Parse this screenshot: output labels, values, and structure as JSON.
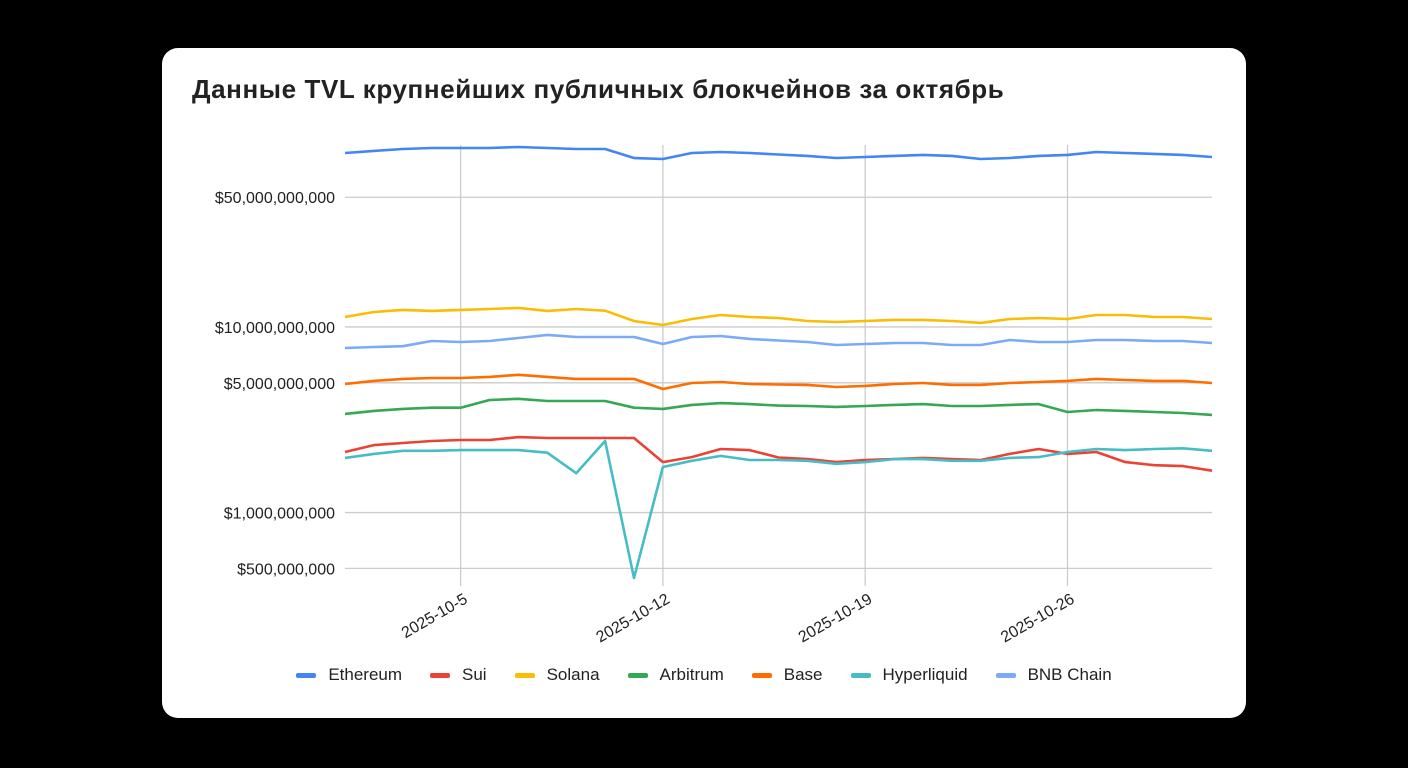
{
  "chart_data": {
    "type": "line",
    "title": "Данные TVL крупнейших публичных блокчейнов за октябрь",
    "xlabel": "",
    "ylabel": "",
    "yscale": "log",
    "ylim": [
      433000000,
      95600000000
    ],
    "xlim": [
      "2025-10-01",
      "2025-10-31"
    ],
    "grid": true,
    "legend_position": "bottom",
    "x": [
      "2025-10-01",
      "2025-10-02",
      "2025-10-03",
      "2025-10-04",
      "2025-10-05",
      "2025-10-06",
      "2025-10-07",
      "2025-10-08",
      "2025-10-09",
      "2025-10-10",
      "2025-10-11",
      "2025-10-12",
      "2025-10-13",
      "2025-10-14",
      "2025-10-15",
      "2025-10-16",
      "2025-10-17",
      "2025-10-18",
      "2025-10-19",
      "2025-10-20",
      "2025-10-21",
      "2025-10-22",
      "2025-10-23",
      "2025-10-24",
      "2025-10-25",
      "2025-10-26",
      "2025-10-27",
      "2025-10-28",
      "2025-10-29",
      "2025-10-30",
      "2025-10-31"
    ],
    "x_ticks": [
      {
        "date": "2025-10-05",
        "label": "2025-10-5"
      },
      {
        "date": "2025-10-12",
        "label": "2025-10-12"
      },
      {
        "date": "2025-10-19",
        "label": "2025-10-19"
      },
      {
        "date": "2025-10-26",
        "label": "2025-10-26"
      }
    ],
    "y_ticks": [
      {
        "value": 50000000000,
        "label": "$50,000,000,000"
      },
      {
        "value": 10000000000,
        "label": "$10,000,000,000"
      },
      {
        "value": 5000000000,
        "label": "$5,000,000,000"
      },
      {
        "value": 1000000000,
        "label": "$1,000,000,000"
      },
      {
        "value": 500000000,
        "label": "$500,000,000"
      }
    ],
    "series": [
      {
        "name": "Ethereum",
        "color": "#4285F4",
        "values_billions": [
          86.6,
          88.8,
          91.0,
          92.1,
          92.1,
          92.1,
          93.3,
          92.1,
          91.0,
          91.0,
          81.4,
          80.4,
          86.6,
          87.7,
          86.6,
          85.0,
          83.5,
          81.4,
          82.4,
          83.5,
          84.5,
          83.5,
          80.4,
          81.4,
          83.5,
          84.5,
          87.7,
          86.6,
          85.6,
          84.5,
          82.4
        ]
      },
      {
        "name": "Sui",
        "color": "#EA4335",
        "values_billions": [
          2.12,
          2.31,
          2.37,
          2.43,
          2.46,
          2.46,
          2.55,
          2.52,
          2.52,
          2.52,
          2.52,
          1.87,
          1.99,
          2.2,
          2.17,
          1.98,
          1.94,
          1.87,
          1.92,
          1.94,
          1.97,
          1.94,
          1.92,
          2.07,
          2.2,
          2.07,
          2.12,
          1.87,
          1.8,
          1.78,
          1.68
        ]
      },
      {
        "name": "Solana",
        "color": "#FBBC04",
        "values_billions": [
          11.32,
          12.04,
          12.35,
          12.2,
          12.35,
          12.5,
          12.66,
          12.2,
          12.5,
          12.24,
          10.77,
          10.25,
          11.04,
          11.6,
          11.32,
          11.18,
          10.77,
          10.64,
          10.77,
          10.91,
          10.91,
          10.77,
          10.51,
          11.04,
          11.18,
          11.04,
          11.6,
          11.6,
          11.32,
          11.32,
          11.04
        ]
      },
      {
        "name": "Arbitrum",
        "color": "#34A853",
        "values_billions": [
          3.4,
          3.53,
          3.62,
          3.67,
          3.67,
          4.04,
          4.1,
          3.99,
          3.99,
          3.99,
          3.67,
          3.62,
          3.8,
          3.89,
          3.84,
          3.77,
          3.75,
          3.71,
          3.75,
          3.8,
          3.84,
          3.75,
          3.75,
          3.8,
          3.84,
          3.48,
          3.57,
          3.53,
          3.48,
          3.44,
          3.36
        ]
      },
      {
        "name": "Base",
        "color": "#FF6D01",
        "values_billions": [
          4.93,
          5.12,
          5.25,
          5.31,
          5.31,
          5.38,
          5.52,
          5.38,
          5.25,
          5.25,
          5.25,
          4.63,
          4.99,
          5.05,
          4.93,
          4.9,
          4.87,
          4.75,
          4.81,
          4.93,
          4.99,
          4.87,
          4.87,
          4.99,
          5.05,
          5.12,
          5.25,
          5.18,
          5.12,
          5.12,
          4.99
        ]
      },
      {
        "name": "Hyperliquid",
        "color": "#46BDC6",
        "values_billions": [
          1.97,
          2.07,
          2.15,
          2.15,
          2.17,
          2.17,
          2.17,
          2.1,
          1.63,
          2.43,
          0.444,
          1.76,
          1.9,
          2.02,
          1.92,
          1.92,
          1.9,
          1.83,
          1.87,
          1.94,
          1.94,
          1.9,
          1.9,
          1.97,
          1.99,
          2.12,
          2.2,
          2.17,
          2.2,
          2.22,
          2.15
        ]
      },
      {
        "name": "BNB Chain",
        "color": "#7BAAF7",
        "values_billions": [
          7.7,
          7.8,
          7.88,
          8.4,
          8.3,
          8.4,
          8.72,
          9.06,
          8.83,
          8.83,
          8.83,
          8.09,
          8.83,
          8.94,
          8.62,
          8.45,
          8.3,
          7.99,
          8.09,
          8.2,
          8.2,
          7.99,
          7.99,
          8.51,
          8.3,
          8.3,
          8.51,
          8.51,
          8.4,
          8.4,
          8.2
        ]
      }
    ]
  }
}
